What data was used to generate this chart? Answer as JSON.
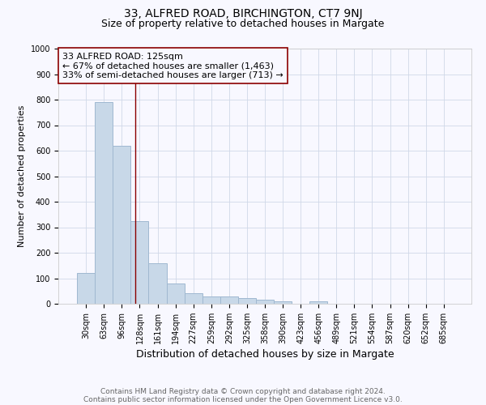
{
  "title": "33, ALFRED ROAD, BIRCHINGTON, CT7 9NJ",
  "subtitle": "Size of property relative to detached houses in Margate",
  "xlabel": "Distribution of detached houses by size in Margate",
  "ylabel": "Number of detached properties",
  "categories": [
    "30sqm",
    "63sqm",
    "96sqm",
    "128sqm",
    "161sqm",
    "194sqm",
    "227sqm",
    "259sqm",
    "292sqm",
    "325sqm",
    "358sqm",
    "390sqm",
    "423sqm",
    "456sqm",
    "489sqm",
    "521sqm",
    "554sqm",
    "587sqm",
    "620sqm",
    "652sqm",
    "685sqm"
  ],
  "values": [
    120,
    790,
    620,
    325,
    160,
    78,
    40,
    30,
    27,
    22,
    15,
    10,
    0,
    10,
    0,
    0,
    0,
    0,
    0,
    0,
    0
  ],
  "bar_color": "#c8d8e8",
  "bar_edgecolor": "#a0b8d0",
  "grid_color": "#d0d8e8",
  "vline_x": 2.75,
  "vline_color": "#8b0000",
  "annotation_title": "33 ALFRED ROAD: 125sqm",
  "annotation_line1": "← 67% of detached houses are smaller (1,463)",
  "annotation_line2": "33% of semi-detached houses are larger (713) →",
  "annotation_box_edgecolor": "#8b0000",
  "ylim": [
    0,
    1000
  ],
  "yticks": [
    0,
    100,
    200,
    300,
    400,
    500,
    600,
    700,
    800,
    900,
    1000
  ],
  "footnote1": "Contains HM Land Registry data © Crown copyright and database right 2024.",
  "footnote2": "Contains public sector information licensed under the Open Government Licence v3.0.",
  "background_color": "#f8f8ff",
  "title_fontsize": 10,
  "subtitle_fontsize": 9,
  "xlabel_fontsize": 9,
  "ylabel_fontsize": 8,
  "tick_fontsize": 7,
  "annotation_fontsize": 8,
  "footnote_fontsize": 6.5
}
